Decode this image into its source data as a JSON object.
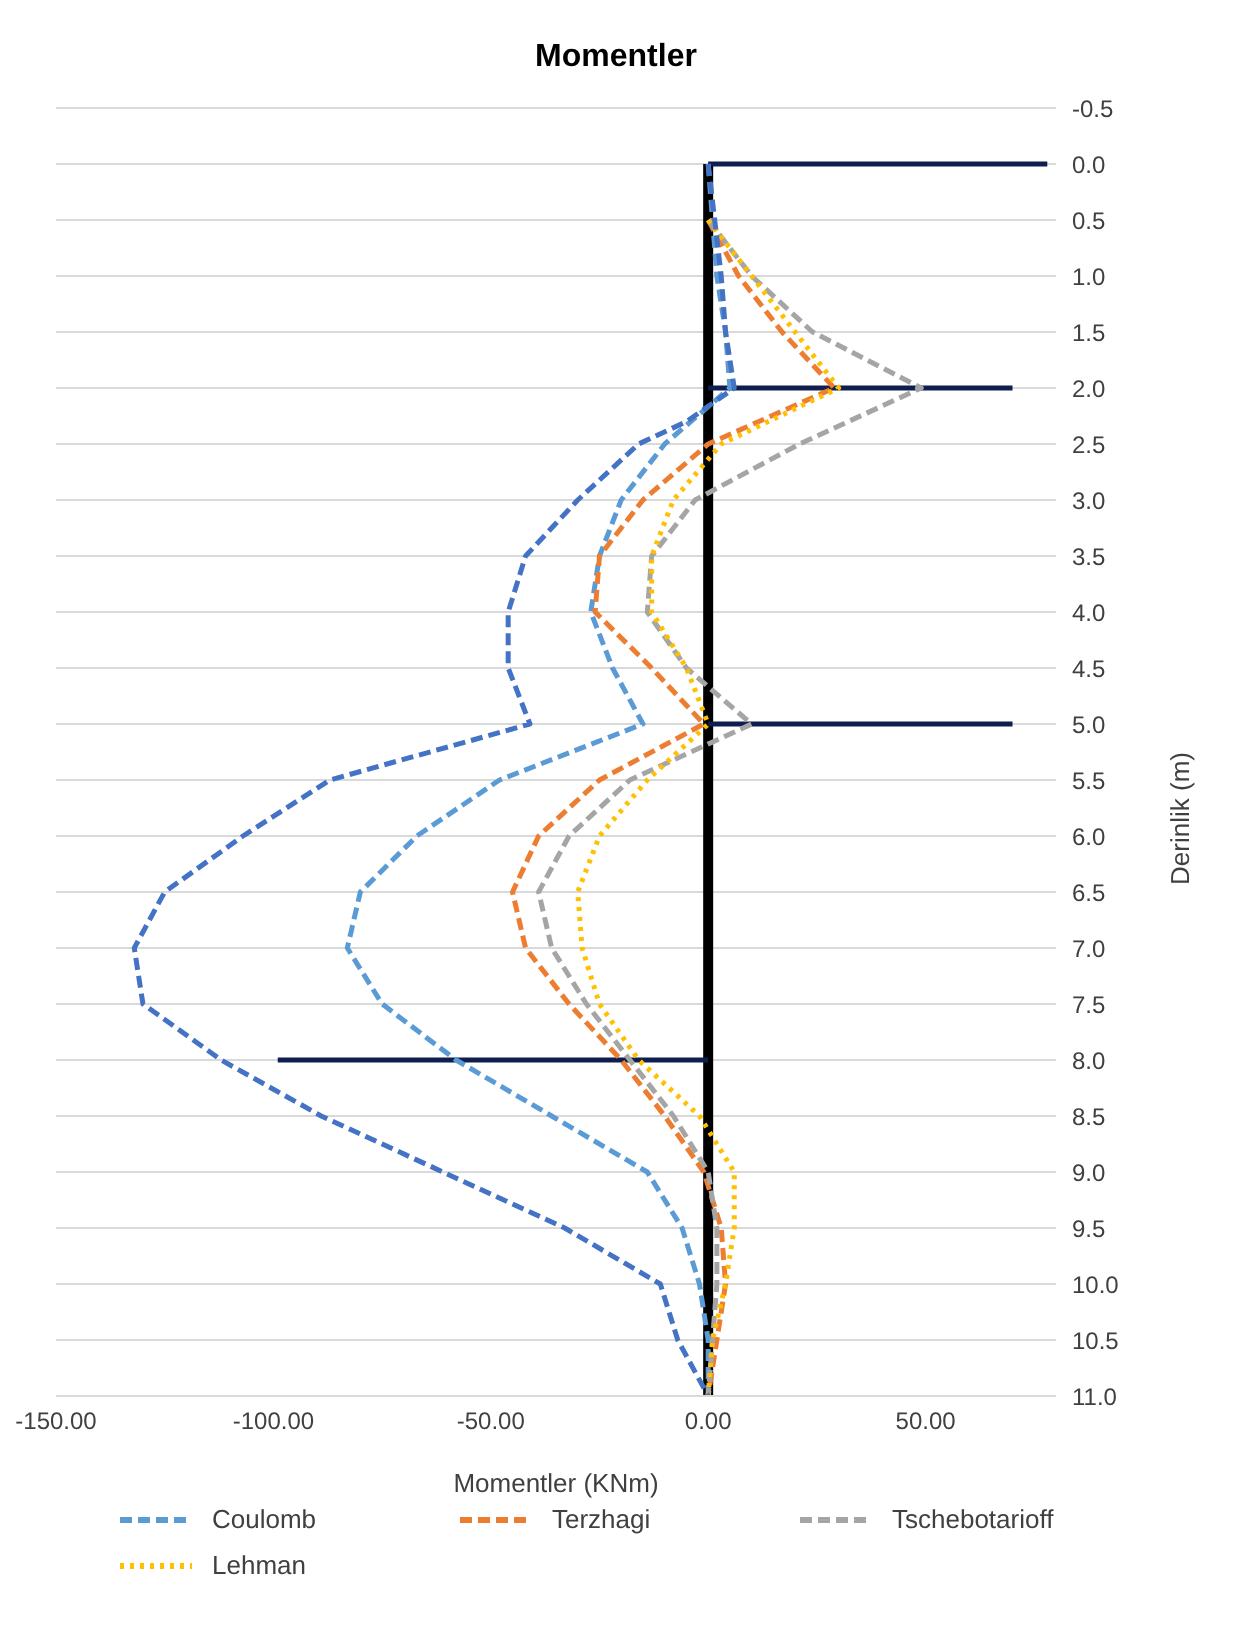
{
  "chart_data": {
    "type": "line",
    "title": "Momentler",
    "xlabel": "Momentler (KNm)",
    "ylabel": "Derinlik (m)",
    "xlim": [
      -150,
      80
    ],
    "xticks": [
      {
        "value": -150,
        "label": "-150.00"
      },
      {
        "value": -100,
        "label": "-100.00"
      },
      {
        "value": -50,
        "label": "-50.00"
      },
      {
        "value": 0,
        "label": "0.00"
      },
      {
        "value": 50,
        "label": "50.00"
      }
    ],
    "ylim": [
      11,
      -0.5
    ],
    "yticks": [
      -0.5,
      {
        "value": 0,
        "label": "0.0"
      },
      0.5,
      {
        "value": 1,
        "label": "1.0"
      },
      1.5,
      {
        "value": 2,
        "label": "2.0"
      },
      2.5,
      {
        "value": 3,
        "label": "3.0"
      },
      3.5,
      {
        "value": 4,
        "label": "4.0"
      },
      4.5,
      {
        "value": 5,
        "label": "5.0"
      },
      5.5,
      {
        "value": 6,
        "label": "6.0"
      },
      6.5,
      {
        "value": 7,
        "label": "7.0"
      },
      7.5,
      {
        "value": 8,
        "label": "8.0"
      },
      8.5,
      {
        "value": 9,
        "label": "9.0"
      },
      9.5,
      {
        "value": 10,
        "label": "10.0"
      },
      10.5,
      {
        "value": 11,
        "label": "11.0"
      }
    ],
    "grid": "y",
    "legend": "bottom",
    "marker": "none",
    "series": [
      {
        "name": "Coulomb",
        "color": "#5b9bd5",
        "line_style": "dashed",
        "x": [
          0,
          2,
          4,
          5,
          -10,
          -20,
          -25,
          -27,
          -22,
          -15,
          -48,
          -67,
          -80,
          -83,
          -75,
          -58,
          -36,
          -14,
          -6,
          -2,
          0,
          0
        ],
        "values": [
          0,
          1,
          1.5,
          2,
          2.5,
          3,
          3.5,
          4,
          4.5,
          5,
          5.5,
          6,
          6.5,
          7,
          7.5,
          8,
          8.5,
          9,
          9.5,
          10,
          10.5,
          11
        ]
      },
      {
        "name": "Terzhagi",
        "color": "#ed7d31",
        "line_style": "dashed",
        "x": [
          0,
          7,
          17,
          29,
          0,
          -15,
          -25,
          -26,
          -13,
          -1,
          -25,
          -39,
          -45,
          -42,
          -32,
          -20,
          -10,
          -1,
          3,
          4,
          2,
          0
        ],
        "values": [
          0.5,
          1,
          1.5,
          2,
          2.5,
          3,
          3.5,
          4,
          4.5,
          5,
          5.5,
          6,
          6.5,
          7,
          7.5,
          8,
          8.5,
          9,
          9.5,
          10,
          10.5,
          11
        ]
      },
      {
        "name": "Tschebotarioff",
        "color": "#a5a5a5",
        "line_style": "dashed",
        "x": [
          0,
          10,
          24,
          49,
          21,
          -3,
          -13,
          -14,
          -5,
          10,
          -18,
          -32,
          -39,
          -36,
          -28,
          -18,
          -8,
          0,
          2,
          2,
          1,
          0
        ],
        "values": [
          0.5,
          1,
          1.5,
          2,
          2.5,
          3,
          3.5,
          4,
          4.5,
          5,
          5.5,
          6,
          6.5,
          7,
          7.5,
          8,
          8.5,
          9,
          9.5,
          10,
          10.5,
          11
        ]
      },
      {
        "name": "Lehman",
        "color": "#ffc000",
        "line_style": "dotted",
        "x": [
          0,
          10,
          20,
          30,
          3,
          -8,
          -13,
          -13,
          -5,
          0,
          -14,
          -25,
          -30,
          -29,
          -25,
          -16,
          -2,
          6,
          6,
          4,
          1,
          0
        ],
        "values": [
          0.5,
          1,
          1.5,
          2,
          2.5,
          3,
          3.5,
          4,
          4.5,
          5,
          5.5,
          6,
          6.5,
          7,
          7.5,
          8,
          8.5,
          9,
          9.5,
          10,
          10.5,
          11
        ]
      },
      {
        "color": "#4472c4",
        "line_style": "dashed",
        "x": [
          0,
          3,
          4,
          6,
          -5,
          -16,
          -30,
          -42,
          -46,
          -46,
          -41,
          -87,
          -107,
          -125,
          -132,
          -130,
          -112,
          -89,
          -61,
          -33,
          -11,
          -7,
          0
        ],
        "values": [
          0,
          1,
          1.5,
          2,
          2.3,
          2.5,
          3,
          3.5,
          4,
          4.5,
          5,
          5.5,
          6,
          6.5,
          7,
          7.5,
          8,
          8.5,
          9,
          9.5,
          10,
          10.5,
          11
        ]
      },
      {
        "color": "#000000",
        "line_style": "solid",
        "x": [
          0,
          0
        ],
        "values": [
          0,
          11
        ]
      },
      {
        "color": "#0e1f4f",
        "line_style": "solid",
        "x": [
          0,
          78
        ],
        "values": [
          0,
          0
        ]
      },
      {
        "color": "#0e1f4f",
        "line_style": "solid",
        "x": [
          0,
          70
        ],
        "values": [
          2,
          2
        ]
      },
      {
        "color": "#0e1f4f",
        "line_style": "solid",
        "x": [
          0,
          70
        ],
        "values": [
          5,
          5
        ]
      },
      {
        "color": "#0e1f4f",
        "line_style": "solid",
        "x": [
          -99,
          0
        ],
        "values": [
          8,
          8
        ]
      }
    ]
  }
}
